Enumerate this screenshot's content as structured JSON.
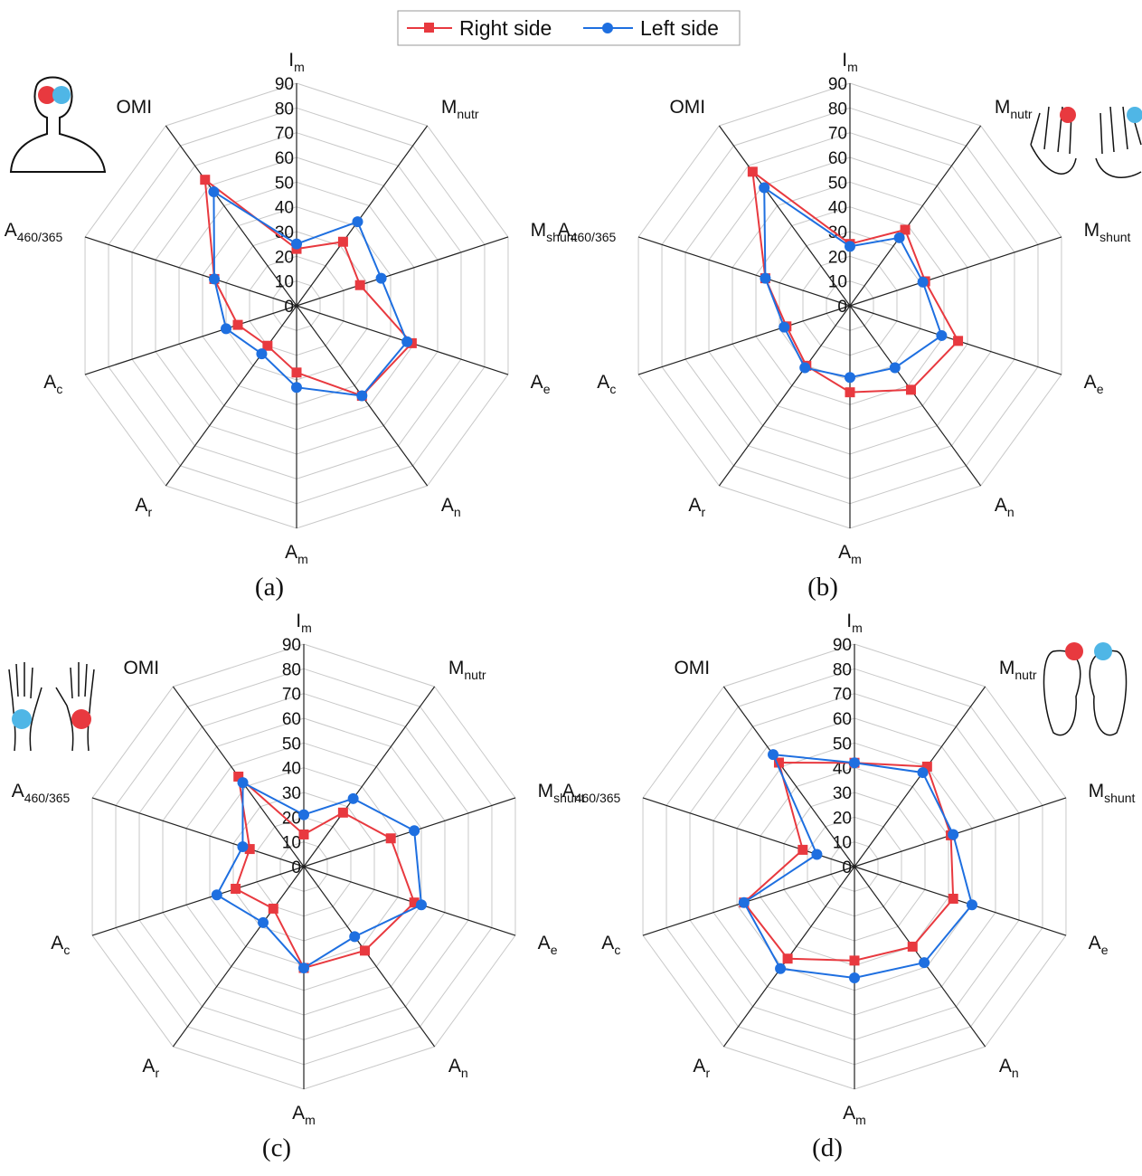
{
  "chart_data": [
    {
      "type": "radar",
      "caption": "(a)",
      "categories": [
        [
          "I",
          "m"
        ],
        [
          "M",
          "nutr"
        ],
        [
          "M",
          "shunt"
        ],
        [
          "A",
          "e"
        ],
        [
          "A",
          "n"
        ],
        [
          "A",
          "m"
        ],
        [
          "A",
          "r"
        ],
        [
          "A",
          "c"
        ],
        [
          "A",
          "460/365"
        ],
        [
          "OMI"
        ]
      ],
      "ylim": [
        0,
        90
      ],
      "yticks": [
        0,
        10,
        20,
        30,
        40,
        50,
        60,
        70,
        80,
        90
      ],
      "grid": true,
      "series": [
        {
          "name": "Right side",
          "color": "#e8393f",
          "marker": "square",
          "values": [
            23,
            32,
            27,
            49,
            45,
            27,
            20,
            25,
            35,
            63
          ]
        },
        {
          "name": "Left side",
          "color": "#1e6fe0",
          "marker": "circle",
          "values": [
            25,
            42,
            36,
            47,
            45,
            33,
            24,
            30,
            35,
            57
          ]
        }
      ]
    },
    {
      "type": "radar",
      "caption": "(b)",
      "categories": [
        [
          "I",
          "m"
        ],
        [
          "M",
          "nutr"
        ],
        [
          "M",
          "shunt"
        ],
        [
          "A",
          "e"
        ],
        [
          "A",
          "n"
        ],
        [
          "A",
          "m"
        ],
        [
          "A",
          "r"
        ],
        [
          "A",
          "c"
        ],
        [
          "A",
          "460/365"
        ],
        [
          "OMI"
        ]
      ],
      "ylim": [
        0,
        90
      ],
      "yticks": [
        0,
        10,
        20,
        30,
        40,
        50,
        60,
        70,
        80,
        90
      ],
      "grid": true,
      "series": [
        {
          "color": "#e8393f",
          "marker": "square",
          "values": [
            25,
            38,
            32,
            46,
            42,
            35,
            30,
            27,
            36,
            67
          ]
        },
        {
          "color": "#1e6fe0",
          "marker": "circle",
          "values": [
            24,
            34,
            31,
            39,
            31,
            29,
            31,
            28,
            36,
            59
          ]
        }
      ]
    },
    {
      "type": "radar",
      "caption": "(c)",
      "categories": [
        [
          "I",
          "m"
        ],
        [
          "M",
          "nutr"
        ],
        [
          "M",
          "shunt"
        ],
        [
          "A",
          "e"
        ],
        [
          "A",
          "n"
        ],
        [
          "A",
          "m"
        ],
        [
          "A",
          "r"
        ],
        [
          "A",
          "c"
        ],
        [
          "A",
          "460/365"
        ],
        [
          "OMI"
        ]
      ],
      "ylim": [
        0,
        90
      ],
      "yticks": [
        0,
        10,
        20,
        30,
        40,
        50,
        60,
        70,
        80,
        90
      ],
      "grid": true,
      "series": [
        {
          "color": "#e8393f",
          "marker": "square",
          "values": [
            13,
            27,
            37,
            47,
            42,
            41,
            21,
            29,
            23,
            45
          ]
        },
        {
          "color": "#1e6fe0",
          "marker": "circle",
          "values": [
            21,
            34,
            47,
            50,
            35,
            41,
            28,
            37,
            26,
            42
          ]
        }
      ]
    },
    {
      "type": "radar",
      "caption": "(d)",
      "categories": [
        [
          "I",
          "m"
        ],
        [
          "M",
          "nutr"
        ],
        [
          "M",
          "shunt"
        ],
        [
          "A",
          "e"
        ],
        [
          "A",
          "n"
        ],
        [
          "A",
          "m"
        ],
        [
          "A",
          "r"
        ],
        [
          "A",
          "c"
        ],
        [
          "A",
          "460/365"
        ],
        [
          "OMI"
        ]
      ],
      "ylim": [
        0,
        90
      ],
      "yticks": [
        0,
        10,
        20,
        30,
        40,
        50,
        60,
        70,
        80,
        90
      ],
      "grid": true,
      "series": [
        {
          "color": "#e8393f",
          "marker": "square",
          "values": [
            42,
            50,
            41,
            42,
            40,
            38,
            46,
            47,
            22,
            52
          ]
        },
        {
          "color": "#1e6fe0",
          "marker": "circle",
          "values": [
            42,
            47,
            42,
            50,
            48,
            45,
            51,
            47,
            16,
            56
          ]
        }
      ]
    }
  ]
}
